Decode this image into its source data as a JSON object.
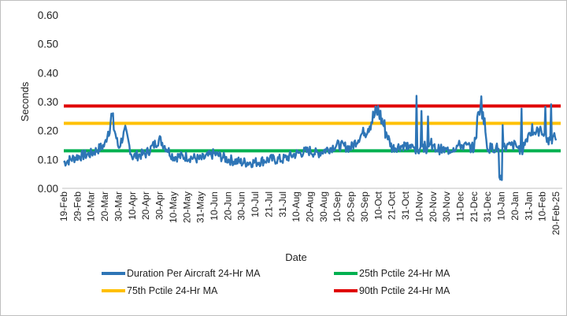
{
  "chart_data": {
    "type": "line",
    "title": "",
    "xlabel": "Date",
    "ylabel": "Seconds",
    "ylim": [
      0.0,
      0.6
    ],
    "y_ticks": [
      "0.00",
      "0.10",
      "0.20",
      "0.30",
      "0.40",
      "0.50",
      "0.60"
    ],
    "x_tick_labels": [
      "19-Feb",
      "29-Feb",
      "10-Mar",
      "20-Mar",
      "30-Mar",
      "10-Apr",
      "20-Apr",
      "30-Apr",
      "10-May",
      "20-May",
      "31-May",
      "10-Jun",
      "20-Jun",
      "30-Jun",
      "10-Jul",
      "21-Jul",
      "31-Jul",
      "10-Aug",
      "20-Aug",
      "30-Aug",
      "10-Sep",
      "20-Sep",
      "30-Sep",
      "10-Oct",
      "21-Oct",
      "31-Oct",
      "10-Nov",
      "20-Nov",
      "30-Nov",
      "11-Dec",
      "21-Dec",
      "31-Dec",
      "10-Jan",
      "20-Jan",
      "31-Jan",
      "10-Feb",
      "20-Feb-25"
    ],
    "grid": false,
    "legend_position": "bottom",
    "series": [
      {
        "name": "Duration Per Aircraft 24-Hr MA",
        "color": "#2e75b6",
        "x": [
          0,
          1,
          2,
          3,
          3.5,
          4,
          4.5,
          5,
          6,
          7,
          8,
          9,
          10,
          11,
          12,
          13,
          14,
          15,
          16,
          17,
          18,
          18.5,
          19,
          20,
          21,
          22,
          23,
          24,
          25,
          26,
          27,
          28,
          29,
          30,
          30.5,
          31,
          32,
          33,
          33.5,
          34,
          35,
          35.5,
          36
        ],
        "values": [
          0.09,
          0.11,
          0.12,
          0.15,
          0.25,
          0.14,
          0.2,
          0.11,
          0.12,
          0.17,
          0.11,
          0.11,
          0.1,
          0.12,
          0.1,
          0.09,
          0.09,
          0.1,
          0.1,
          0.12,
          0.13,
          0.12,
          0.13,
          0.15,
          0.14,
          0.2,
          0.27,
          0.14,
          0.15,
          0.13,
          0.14,
          0.13,
          0.15,
          0.14,
          0.31,
          0.14,
          0.14,
          0.15,
          0.13,
          0.19,
          0.2,
          0.16,
          0.18
        ]
      },
      {
        "name": "25th Pctile 24-Hr MA",
        "color": "#00b050",
        "value": 0.13
      },
      {
        "name": "75th Pctile 24-Hr MA",
        "color": "#ffc000",
        "value": 0.225
      },
      {
        "name": "90th Pctile 24-Hr MA",
        "color": "#e00000",
        "value": 0.285
      }
    ]
  }
}
